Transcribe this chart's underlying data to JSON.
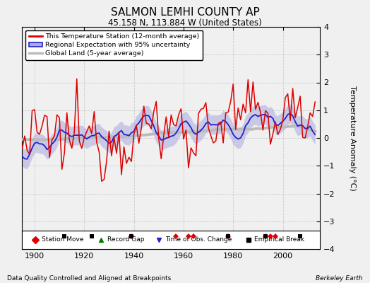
{
  "title": "SALMON LEMHI COUNTY AP",
  "subtitle": "45.158 N, 113.884 W (United States)",
  "ylabel": "Temperature Anomaly (°C)",
  "footer_left": "Data Quality Controlled and Aligned at Breakpoints",
  "footer_right": "Berkeley Earth",
  "xlim": [
    1895,
    2015
  ],
  "ylim": [
    -4,
    4
  ],
  "yticks": [
    -4,
    -3,
    -2,
    -1,
    0,
    1,
    2,
    3,
    4
  ],
  "xticks": [
    1900,
    1920,
    1940,
    1960,
    1980,
    2000
  ],
  "bg_color": "#f0f0f0",
  "plot_bg_color": "#f0f0f0",
  "station_move_years": [
    1939,
    1957,
    1962,
    1964,
    1978,
    1993,
    1995,
    1997
  ],
  "record_gap_years": [],
  "tobs_change_years": [],
  "empirical_break_years": [
    1912,
    1923,
    1939,
    1978,
    1993,
    2007
  ],
  "grid_color": "#cccccc",
  "red_color": "#dd0000",
  "blue_color": "#2222cc",
  "band_color": "#aaaadd",
  "gray_color": "#bbbbbb",
  "seed": 12345
}
